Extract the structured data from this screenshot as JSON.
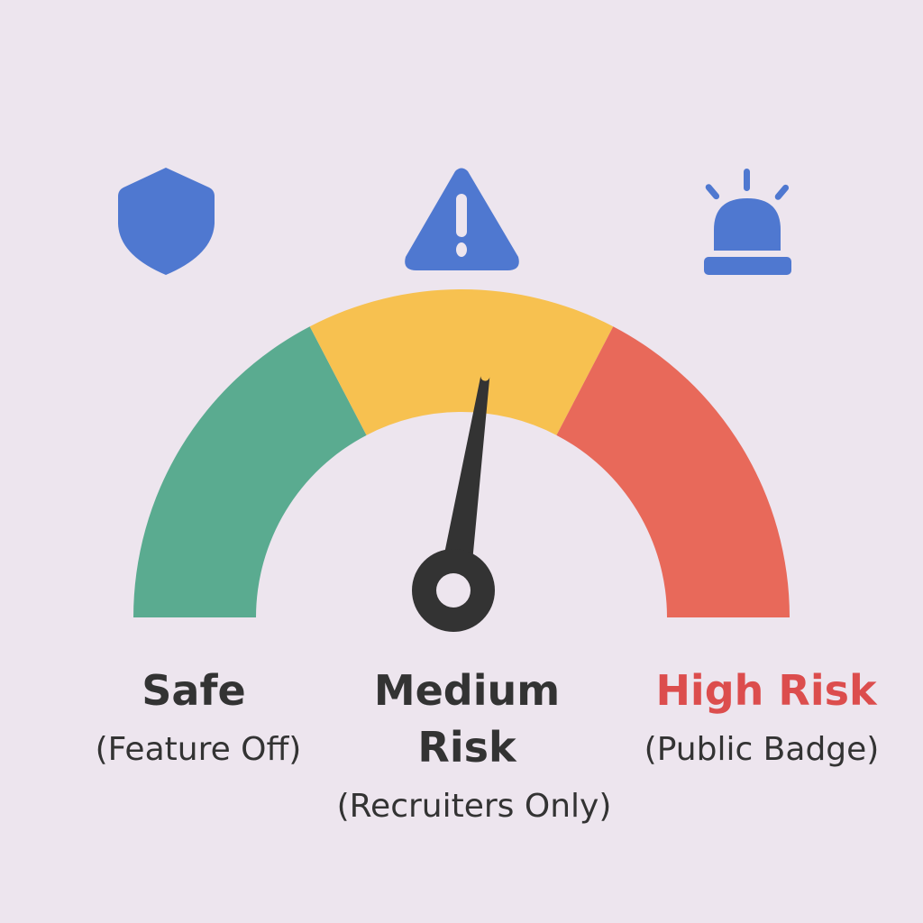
{
  "colors": {
    "background": "#ede5ee",
    "icon": "#4f78d0",
    "safe": "#5aab90",
    "medium": "#f7c150",
    "high": "#e8695a",
    "needle": "#333333",
    "high_label": "#dc4d4d"
  },
  "gauge": {
    "segments": [
      {
        "name": "safe",
        "from": 0,
        "to": 0.347
      },
      {
        "name": "medium",
        "from": 0.347,
        "to": 0.653
      },
      {
        "name": "high",
        "from": 0.653,
        "to": 1
      }
    ],
    "needle_value": 0.547
  },
  "icons": [
    "shield-icon",
    "warning-triangle-icon",
    "siren-alarm-icon"
  ],
  "labels": {
    "safe": {
      "title": "Safe",
      "sub": "(Feature Off)"
    },
    "medium": {
      "title_line1": "Medium",
      "title_line2": "Risk",
      "sub": "(Recruiters Only)"
    },
    "high": {
      "title": "High Risk",
      "sub": "(Public Badge)"
    }
  }
}
